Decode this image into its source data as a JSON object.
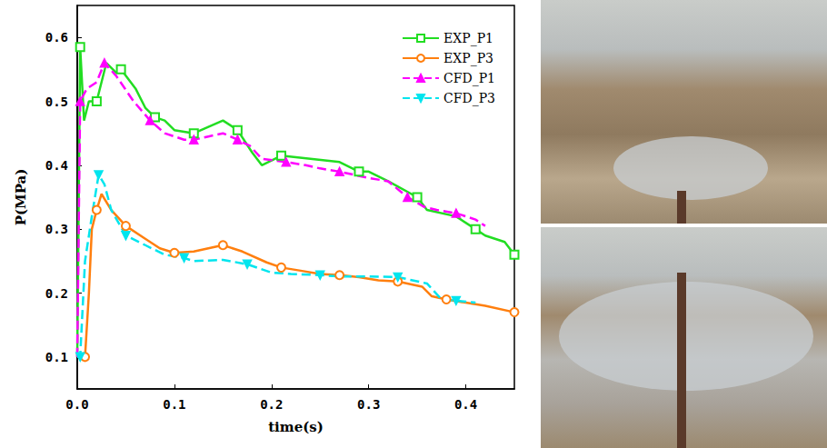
{
  "chart_data": {
    "type": "line",
    "x_label": "time(s)",
    "y_label": "P(MPa)",
    "xlim": [
      0,
      0.45
    ],
    "xticks": [
      {
        "value": 0,
        "label": "0.0"
      },
      0.1,
      0.2,
      0.3,
      0.4
    ],
    "ylim": [
      0.05,
      0.65
    ],
    "yticks": [
      0.1,
      0.2,
      0.3,
      0.4,
      0.5,
      0.6
    ],
    "grid": false,
    "legend": "upper right",
    "series": [
      {
        "name": "EXP_P1",
        "color": "#22dd22",
        "marker": "hollow_square",
        "line_style": "solid",
        "x": [
          0,
          0.003,
          0.007,
          0.012,
          0.02,
          0.03,
          0.04,
          0.045,
          0.06,
          0.07,
          0.08,
          0.09,
          0.1,
          0.12,
          0.135,
          0.15,
          0.165,
          0.18,
          0.19,
          0.21,
          0.24,
          0.27,
          0.29,
          0.3,
          0.32,
          0.35,
          0.36,
          0.39,
          0.41,
          0.42,
          0.44,
          0.45
        ],
        "values": [
          0.1,
          0.585,
          0.47,
          0.5,
          0.5,
          0.56,
          0.545,
          0.55,
          0.52,
          0.49,
          0.475,
          0.47,
          0.455,
          0.45,
          0.46,
          0.47,
          0.455,
          0.42,
          0.4,
          0.415,
          0.41,
          0.405,
          0.39,
          0.39,
          0.375,
          0.35,
          0.33,
          0.32,
          0.3,
          0.29,
          0.28,
          0.26
        ]
      },
      {
        "name": "EXP_P3",
        "color": "#ff7f0e",
        "marker": "hollow_circle",
        "line_style": "solid",
        "x": [
          0,
          0.008,
          0.012,
          0.015,
          0.02,
          0.025,
          0.035,
          0.05,
          0.07,
          0.085,
          0.1,
          0.12,
          0.135,
          0.15,
          0.17,
          0.195,
          0.21,
          0.23,
          0.25,
          0.27,
          0.29,
          0.31,
          0.33,
          0.355,
          0.365,
          0.38,
          0.4,
          0.42,
          0.45
        ],
        "values": [
          0.1,
          0.1,
          0.2,
          0.3,
          0.33,
          0.355,
          0.33,
          0.305,
          0.285,
          0.27,
          0.263,
          0.265,
          0.27,
          0.275,
          0.265,
          0.248,
          0.24,
          0.235,
          0.23,
          0.228,
          0.225,
          0.22,
          0.218,
          0.21,
          0.195,
          0.19,
          0.185,
          0.18,
          0.17
        ]
      },
      {
        "name": "CFD_P1",
        "color": "#ff00ff",
        "marker": "triangle",
        "line_style": "dashed",
        "x": [
          0,
          0.003,
          0.01,
          0.02,
          0.028,
          0.04,
          0.058,
          0.075,
          0.09,
          0.11,
          0.12,
          0.135,
          0.15,
          0.165,
          0.178,
          0.19,
          0.215,
          0.235,
          0.25,
          0.27,
          0.3,
          0.32,
          0.34,
          0.357,
          0.37,
          0.39,
          0.41,
          0.42
        ],
        "values": [
          0.1,
          0.5,
          0.52,
          0.53,
          0.56,
          0.54,
          0.5,
          0.47,
          0.45,
          0.44,
          0.44,
          0.445,
          0.45,
          0.44,
          0.43,
          0.41,
          0.405,
          0.4,
          0.395,
          0.39,
          0.38,
          0.375,
          0.35,
          0.335,
          0.33,
          0.325,
          0.315,
          0.305
        ]
      },
      {
        "name": "CFD_P3",
        "color": "#00e5ee",
        "marker": "triangle_down",
        "line_style": "dashed",
        "x": [
          0,
          0.003,
          0.008,
          0.015,
          0.022,
          0.028,
          0.035,
          0.05,
          0.07,
          0.09,
          0.11,
          0.12,
          0.15,
          0.175,
          0.2,
          0.22,
          0.25,
          0.27,
          0.3,
          0.33,
          0.36,
          0.375,
          0.39,
          0.41
        ],
        "values": [
          0.1,
          0.1,
          0.25,
          0.32,
          0.385,
          0.37,
          0.33,
          0.29,
          0.275,
          0.26,
          0.255,
          0.25,
          0.252,
          0.245,
          0.232,
          0.23,
          0.228,
          0.226,
          0.226,
          0.225,
          0.215,
          0.19,
          0.188,
          0.185
        ]
      }
    ]
  }
}
